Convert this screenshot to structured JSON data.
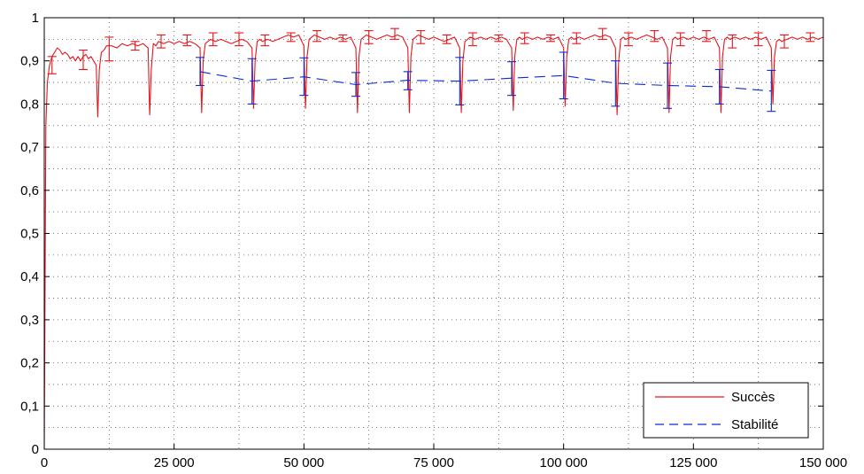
{
  "chart_data": {
    "type": "line",
    "title": "",
    "xlabel": "",
    "ylabel": "",
    "xlim": [
      0,
      150000
    ],
    "ylim": [
      0,
      1
    ],
    "grid": true,
    "grid_style": "dotted",
    "legend_position": "bottom-right",
    "x_ticks": [
      {
        "value": 0,
        "label": "0"
      },
      {
        "value": 25000,
        "label": "25 000"
      },
      {
        "value": 50000,
        "label": "50 000"
      },
      {
        "value": 75000,
        "label": "75 000"
      },
      {
        "value": 100000,
        "label": "100 000"
      },
      {
        "value": 125000,
        "label": "125 000"
      },
      {
        "value": 150000,
        "label": "150 000"
      }
    ],
    "y_ticks": [
      {
        "value": 0,
        "label": "0"
      },
      {
        "value": 0.1,
        "label": "0,1"
      },
      {
        "value": 0.2,
        "label": "0,2"
      },
      {
        "value": 0.3,
        "label": "0,3"
      },
      {
        "value": 0.4,
        "label": "0,4"
      },
      {
        "value": 0.5,
        "label": "0,5"
      },
      {
        "value": 0.6,
        "label": "0,6"
      },
      {
        "value": 0.7,
        "label": "0,7"
      },
      {
        "value": 0.8,
        "label": "0,8"
      },
      {
        "value": 0.9,
        "label": "0,9"
      },
      {
        "value": 1,
        "label": "1"
      }
    ],
    "series": [
      {
        "name": "Succès",
        "color": "#e8141b",
        "dash": "solid",
        "x": [
          0,
          300,
          600,
          1000,
          1500,
          2000,
          2500,
          3000,
          3500,
          4000,
          4500,
          5000,
          5500,
          6000,
          6500,
          7000,
          7500,
          8000,
          8500,
          9000,
          9500,
          10000,
          10300,
          10600,
          11000,
          11500,
          12000,
          13000,
          14000,
          15000,
          16000,
          17000,
          18000,
          19000,
          20000,
          20300,
          20600,
          21000,
          21500,
          22000,
          23000,
          24000,
          25000,
          26000,
          27000,
          28000,
          29000,
          30000,
          30300,
          30600,
          31000,
          31500,
          32000,
          33000,
          34000,
          35000,
          36000,
          37000,
          38000,
          39000,
          40000,
          40300,
          40600,
          41000,
          41500,
          42000,
          43000,
          44000,
          45000,
          46000,
          47000,
          48000,
          49000,
          50000,
          50300,
          50600,
          51000,
          51500,
          52000,
          53000,
          54000,
          55000,
          56000,
          57000,
          58000,
          59000,
          60000,
          60300,
          60600,
          61000,
          61500,
          62000,
          63000,
          64000,
          65000,
          66000,
          67000,
          68000,
          69000,
          70000,
          70300,
          70600,
          71000,
          71500,
          72000,
          73000,
          74000,
          75000,
          76000,
          77000,
          78000,
          79000,
          80000,
          80300,
          80600,
          81000,
          81500,
          82000,
          83000,
          84000,
          85000,
          86000,
          87000,
          88000,
          89000,
          90000,
          90300,
          90600,
          91000,
          91500,
          92000,
          93000,
          94000,
          95000,
          96000,
          97000,
          98000,
          99000,
          100000,
          100300,
          100600,
          101000,
          101500,
          102000,
          103000,
          104000,
          105000,
          106000,
          107000,
          108000,
          109000,
          110000,
          110300,
          110600,
          111000,
          111500,
          112000,
          113000,
          114000,
          115000,
          116000,
          117000,
          118000,
          119000,
          120000,
          120300,
          120600,
          121000,
          121500,
          122000,
          123000,
          124000,
          125000,
          126000,
          127000,
          128000,
          129000,
          130000,
          130300,
          130600,
          131000,
          131500,
          132000,
          133000,
          134000,
          135000,
          136000,
          137000,
          138000,
          139000,
          140000,
          140300,
          140600,
          141000,
          141500,
          142000,
          143000,
          144000,
          145000,
          146000,
          147000,
          148000,
          149000,
          150000
        ],
        "y": [
          0.0,
          0.75,
          0.85,
          0.89,
          0.91,
          0.92,
          0.93,
          0.925,
          0.915,
          0.92,
          0.915,
          0.905,
          0.91,
          0.9,
          0.91,
          0.9,
          0.91,
          0.915,
          0.905,
          0.91,
          0.9,
          0.89,
          0.77,
          0.88,
          0.92,
          0.925,
          0.935,
          0.935,
          0.93,
          0.94,
          0.935,
          0.94,
          0.935,
          0.94,
          0.93,
          0.775,
          0.88,
          0.94,
          0.935,
          0.945,
          0.94,
          0.945,
          0.94,
          0.945,
          0.94,
          0.945,
          0.94,
          0.93,
          0.78,
          0.9,
          0.94,
          0.945,
          0.95,
          0.945,
          0.95,
          0.945,
          0.94,
          0.945,
          0.95,
          0.945,
          0.93,
          0.79,
          0.9,
          0.945,
          0.95,
          0.945,
          0.95,
          0.945,
          0.95,
          0.955,
          0.96,
          0.955,
          0.96,
          0.935,
          0.79,
          0.91,
          0.95,
          0.955,
          0.96,
          0.955,
          0.95,
          0.955,
          0.95,
          0.955,
          0.95,
          0.955,
          0.93,
          0.78,
          0.91,
          0.95,
          0.955,
          0.96,
          0.955,
          0.95,
          0.955,
          0.96,
          0.955,
          0.96,
          0.955,
          0.93,
          0.78,
          0.91,
          0.95,
          0.955,
          0.96,
          0.955,
          0.95,
          0.955,
          0.95,
          0.945,
          0.95,
          0.955,
          0.93,
          0.78,
          0.9,
          0.945,
          0.95,
          0.955,
          0.95,
          0.955,
          0.95,
          0.955,
          0.95,
          0.955,
          0.95,
          0.93,
          0.785,
          0.91,
          0.95,
          0.955,
          0.95,
          0.955,
          0.95,
          0.955,
          0.95,
          0.955,
          0.95,
          0.955,
          0.93,
          0.795,
          0.91,
          0.95,
          0.955,
          0.95,
          0.955,
          0.95,
          0.955,
          0.96,
          0.955,
          0.96,
          0.955,
          0.93,
          0.775,
          0.9,
          0.95,
          0.955,
          0.95,
          0.955,
          0.95,
          0.955,
          0.96,
          0.955,
          0.95,
          0.955,
          0.93,
          0.78,
          0.91,
          0.95,
          0.955,
          0.95,
          0.955,
          0.95,
          0.955,
          0.95,
          0.955,
          0.95,
          0.955,
          0.93,
          0.78,
          0.91,
          0.95,
          0.955,
          0.95,
          0.955,
          0.95,
          0.955,
          0.95,
          0.955,
          0.95,
          0.955,
          0.93,
          0.8,
          0.91,
          0.945,
          0.95,
          0.945,
          0.95,
          0.955,
          0.95,
          0.955,
          0.95,
          0.955,
          0.95,
          0.955
        ],
        "error_bars": [
          {
            "x": 1500,
            "low": 0.87,
            "high": 0.91
          },
          {
            "x": 7500,
            "low": 0.88,
            "high": 0.925
          },
          {
            "x": 12500,
            "low": 0.9,
            "high": 0.955
          },
          {
            "x": 17500,
            "low": 0.925,
            "high": 0.945
          },
          {
            "x": 22500,
            "low": 0.93,
            "high": 0.96
          },
          {
            "x": 27500,
            "low": 0.935,
            "high": 0.96
          },
          {
            "x": 32500,
            "low": 0.935,
            "high": 0.965
          },
          {
            "x": 37500,
            "low": 0.935,
            "high": 0.965
          },
          {
            "x": 42500,
            "low": 0.935,
            "high": 0.96
          },
          {
            "x": 47500,
            "low": 0.945,
            "high": 0.965
          },
          {
            "x": 52500,
            "low": 0.945,
            "high": 0.97
          },
          {
            "x": 57500,
            "low": 0.945,
            "high": 0.96
          },
          {
            "x": 62500,
            "low": 0.94,
            "high": 0.97
          },
          {
            "x": 67500,
            "low": 0.95,
            "high": 0.975
          },
          {
            "x": 72500,
            "low": 0.94,
            "high": 0.97
          },
          {
            "x": 77500,
            "low": 0.94,
            "high": 0.96
          },
          {
            "x": 82500,
            "low": 0.935,
            "high": 0.965
          },
          {
            "x": 87500,
            "low": 0.945,
            "high": 0.96
          },
          {
            "x": 92500,
            "low": 0.94,
            "high": 0.965
          },
          {
            "x": 97500,
            "low": 0.945,
            "high": 0.96
          },
          {
            "x": 102500,
            "low": 0.94,
            "high": 0.965
          },
          {
            "x": 107500,
            "low": 0.95,
            "high": 0.975
          },
          {
            "x": 112500,
            "low": 0.935,
            "high": 0.965
          },
          {
            "x": 117500,
            "low": 0.945,
            "high": 0.97
          },
          {
            "x": 122500,
            "low": 0.935,
            "high": 0.965
          },
          {
            "x": 127500,
            "low": 0.945,
            "high": 0.97
          },
          {
            "x": 132500,
            "low": 0.93,
            "high": 0.96
          },
          {
            "x": 137500,
            "low": 0.935,
            "high": 0.965
          },
          {
            "x": 142500,
            "low": 0.93,
            "high": 0.96
          },
          {
            "x": 147500,
            "low": 0.945,
            "high": 0.965
          }
        ]
      },
      {
        "name": "Stabilité",
        "color": "#0b2bd4",
        "dash": "dashed",
        "x": [
          30000,
          40000,
          50000,
          60000,
          70000,
          80000,
          90000,
          100000,
          110000,
          120000,
          130000,
          140000
        ],
        "y": [
          0.875,
          0.853,
          0.863,
          0.845,
          0.855,
          0.853,
          0.86,
          0.866,
          0.848,
          0.843,
          0.84,
          0.83
        ],
        "error_bars": [
          {
            "x": 30000,
            "low": 0.843,
            "high": 0.908
          },
          {
            "x": 40000,
            "low": 0.8,
            "high": 0.905
          },
          {
            "x": 50000,
            "low": 0.82,
            "high": 0.907
          },
          {
            "x": 60000,
            "low": 0.818,
            "high": 0.873
          },
          {
            "x": 70000,
            "low": 0.833,
            "high": 0.875
          },
          {
            "x": 80000,
            "low": 0.798,
            "high": 0.908
          },
          {
            "x": 90000,
            "low": 0.82,
            "high": 0.898
          },
          {
            "x": 100000,
            "low": 0.812,
            "high": 0.92
          },
          {
            "x": 110000,
            "low": 0.795,
            "high": 0.9
          },
          {
            "x": 120000,
            "low": 0.79,
            "high": 0.895
          },
          {
            "x": 130000,
            "low": 0.8,
            "high": 0.88
          },
          {
            "x": 140000,
            "low": 0.783,
            "high": 0.878
          }
        ]
      }
    ]
  }
}
